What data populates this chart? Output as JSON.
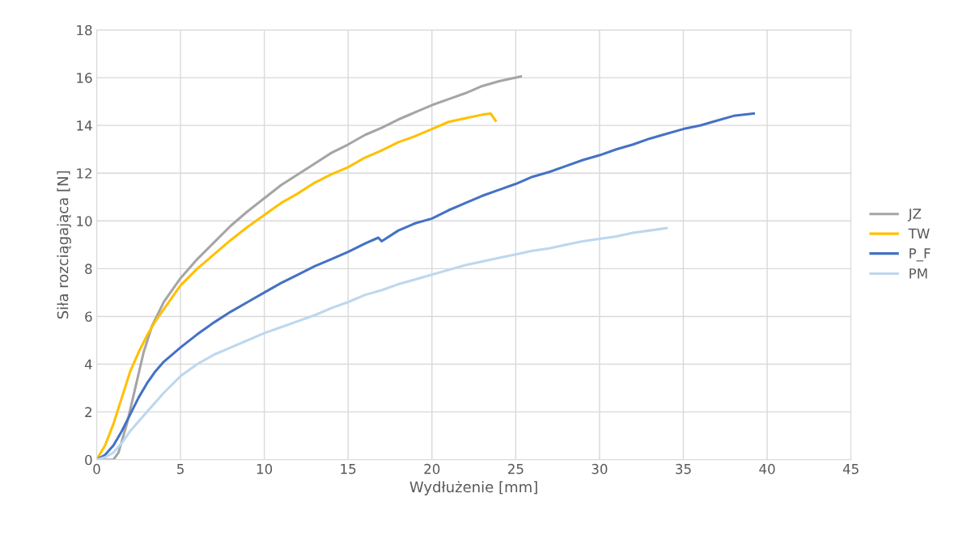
{
  "chart_data": {
    "type": "line",
    "xlabel": "Wydłużenie [mm]",
    "ylabel": "Siła rozciągająca [N]",
    "xlim": [
      0,
      45
    ],
    "xticks": [
      0,
      5,
      10,
      15,
      20,
      25,
      30,
      35,
      40,
      45
    ],
    "ylim": [
      0,
      18
    ],
    "yticks": [
      0,
      2,
      4,
      6,
      8,
      10,
      12,
      14,
      16,
      18
    ],
    "grid": true,
    "legend": "right",
    "marker": "none",
    "line_style": "solid",
    "series": [
      {
        "name": "JZ",
        "color": "#a5a5a5",
        "x": [
          0,
          1,
          1.3,
          1.8,
          2.3,
          2.8,
          3.3,
          4,
          5,
          6,
          7,
          8,
          9,
          10,
          11,
          12,
          13,
          14,
          15,
          16,
          17,
          18,
          19,
          20,
          21,
          22,
          23,
          24,
          25,
          25.3
        ],
        "values": [
          0,
          0,
          0.3,
          1.5,
          3,
          4.5,
          5.6,
          6.6,
          7.6,
          8.4,
          9.1,
          9.8,
          10.4,
          10.95,
          11.5,
          11.95,
          12.4,
          12.85,
          13.2,
          13.6,
          13.9,
          14.25,
          14.55,
          14.85,
          15.1,
          15.35,
          15.65,
          15.85,
          16.0,
          16.05
        ]
      },
      {
        "name": "TW",
        "color": "#ffc000",
        "x": [
          0,
          0.5,
          1,
          1.5,
          2,
          2.5,
          3,
          3.5,
          4,
          5,
          6,
          7,
          8,
          9,
          10,
          11,
          12,
          13,
          14,
          15,
          16,
          17,
          18,
          19,
          20,
          21,
          22,
          23,
          23.5,
          23.8
        ],
        "values": [
          0,
          0.6,
          1.5,
          2.6,
          3.7,
          4.5,
          5.2,
          5.8,
          6.3,
          7.3,
          8.0,
          8.6,
          9.2,
          9.75,
          10.25,
          10.75,
          11.15,
          11.6,
          11.95,
          12.25,
          12.65,
          12.95,
          13.3,
          13.55,
          13.85,
          14.15,
          14.3,
          14.45,
          14.5,
          14.2
        ]
      },
      {
        "name": "P_F",
        "color": "#4472c4",
        "x": [
          0,
          0.5,
          1,
          1.5,
          2,
          2.5,
          3,
          3.5,
          4,
          5,
          6,
          7,
          8,
          9,
          10,
          11,
          12,
          13,
          14,
          15,
          16,
          16.8,
          17,
          18,
          19,
          20,
          21,
          22,
          23,
          24,
          25,
          26,
          27,
          28,
          29,
          30,
          31,
          32,
          33,
          34,
          35,
          36,
          37,
          38,
          39.2
        ],
        "values": [
          0,
          0.2,
          0.6,
          1.2,
          1.9,
          2.6,
          3.2,
          3.7,
          4.1,
          4.7,
          5.25,
          5.75,
          6.2,
          6.6,
          7.0,
          7.4,
          7.75,
          8.1,
          8.4,
          8.7,
          9.05,
          9.3,
          9.15,
          9.6,
          9.9,
          10.1,
          10.45,
          10.75,
          11.05,
          11.3,
          11.55,
          11.85,
          12.05,
          12.3,
          12.55,
          12.75,
          13.0,
          13.2,
          13.45,
          13.65,
          13.85,
          14.0,
          14.2,
          14.4,
          14.5
        ]
      },
      {
        "name": "PM",
        "color": "#bdd7ee",
        "x": [
          0,
          0.5,
          1,
          1.5,
          2,
          3,
          4,
          5,
          6,
          7,
          8,
          9,
          10,
          11,
          12,
          13,
          14,
          15,
          16,
          17,
          18,
          19,
          20,
          21,
          22,
          23,
          24,
          25,
          26,
          27,
          28,
          29,
          30,
          31,
          32,
          33,
          34
        ],
        "values": [
          0,
          0.1,
          0.3,
          0.7,
          1.2,
          2.0,
          2.8,
          3.5,
          4.0,
          4.4,
          4.7,
          5.0,
          5.3,
          5.55,
          5.8,
          6.05,
          6.35,
          6.6,
          6.9,
          7.1,
          7.35,
          7.55,
          7.75,
          7.95,
          8.15,
          8.3,
          8.45,
          8.6,
          8.75,
          8.85,
          9.0,
          9.15,
          9.25,
          9.35,
          9.5,
          9.6,
          9.7
        ]
      }
    ]
  }
}
